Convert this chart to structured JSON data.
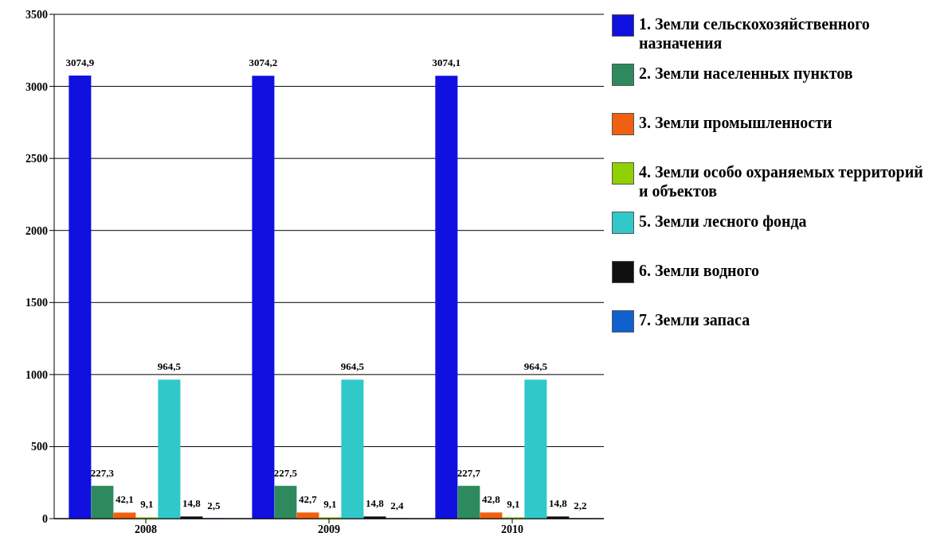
{
  "chart_data": {
    "type": "bar",
    "categories": [
      "2008",
      "2009",
      "2010"
    ],
    "series": [
      {
        "name": "1. Земли сельскохозяйственного назначения",
        "color": "#1010e0",
        "values": [
          3074.9,
          3074.2,
          3074.1
        ],
        "value_labels": [
          "3074,9",
          "3074,2",
          "3074,1"
        ]
      },
      {
        "name": "2. Земли населенных пунктов",
        "color": "#2e8a5e",
        "values": [
          227.3,
          227.5,
          227.7
        ],
        "value_labels": [
          "227,3",
          "227,5",
          "227,7"
        ]
      },
      {
        "name": "3. Земли промышленности",
        "color": "#f06010",
        "values": [
          42.1,
          42.7,
          42.8
        ],
        "value_labels": [
          "42,1",
          "42,7",
          "42,8"
        ]
      },
      {
        "name": "4. Земли особо охраняемых территорий и объектов",
        "color": "#90d000",
        "values": [
          9.1,
          9.1,
          9.1
        ],
        "value_labels": [
          "9,1",
          "9,1",
          "9,1"
        ]
      },
      {
        "name": "5. Земли лесного фонда",
        "color": "#30c8c8",
        "values": [
          964.5,
          964.5,
          964.5
        ],
        "value_labels": [
          "964,5",
          "964,5",
          "964,5"
        ]
      },
      {
        "name": "6. Земли водного",
        "color": "#101010",
        "values": [
          14.8,
          14.8,
          14.8
        ],
        "value_labels": [
          "14,8",
          "14,8",
          "14,8"
        ]
      },
      {
        "name": "7. Земли запаса",
        "color": "#1060d0",
        "values": [
          2.5,
          2.4,
          2.2
        ],
        "value_labels": [
          "2,5",
          "2,4",
          "2,2"
        ]
      }
    ],
    "ylim": [
      0,
      3500
    ],
    "yticks": [
      0,
      500,
      1000,
      1500,
      2000,
      2500,
      3000,
      3500
    ],
    "grid": "y",
    "legend": "right"
  }
}
